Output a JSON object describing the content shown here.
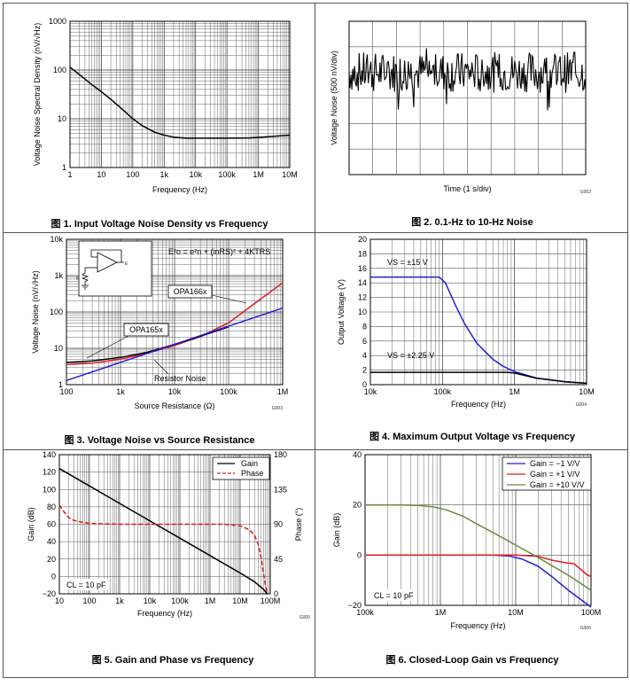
{
  "colors": {
    "blue": "#1f1fd8",
    "red": "#e01b1b",
    "green": "#6a8a3a",
    "black": "#000000",
    "grid": "#555555"
  },
  "chart_data": [
    {
      "id": "fig1",
      "type": "line",
      "title": "图 1. Input Voltage Noise Density vs Frequency",
      "xlabel": "Frequency (Hz)",
      "ylabel": "Voltage Noise Spectral Density (nV/√Hz)",
      "xscale": "log",
      "yscale": "log",
      "xlim": [
        1,
        10000000
      ],
      "ylim": [
        1,
        1000
      ],
      "xticks": [
        1,
        10,
        100,
        1000,
        10000,
        100000,
        1000000,
        10000000
      ],
      "xtick_labels": [
        "1",
        "10",
        "100",
        "1k",
        "10k",
        "100k",
        "1M",
        "10M"
      ],
      "yticks": [
        1,
        10,
        100,
        1000
      ],
      "ytick_labels": [
        "1",
        "10",
        "100",
        "1000"
      ],
      "code": "",
      "series": [
        {
          "name": "Noise",
          "color": "#000000",
          "x": [
            1,
            2,
            5,
            10,
            20,
            50,
            100,
            200,
            500,
            1000,
            2000,
            5000,
            10000,
            50000,
            100000,
            500000,
            1000000,
            5000000,
            10000000
          ],
          "y": [
            115,
            80,
            50,
            36,
            25,
            15,
            10,
            7.2,
            5.3,
            4.6,
            4.2,
            4.0,
            4.0,
            4.0,
            4.0,
            4.05,
            4.15,
            4.45,
            4.6
          ]
        }
      ]
    },
    {
      "id": "fig2",
      "type": "line",
      "title": "图 2. 0.1-Hz to 10-Hz Noise",
      "xlabel": "Time (1 s/div)",
      "ylabel": "Voltage Noise (500 nV/div)",
      "xlim": [
        0,
        10
      ],
      "ylim": [
        -3,
        3
      ],
      "code": "G002",
      "series": [
        {
          "name": "noise",
          "color": "#000000",
          "x": [],
          "y": []
        }
      ]
    },
    {
      "id": "fig3",
      "type": "line",
      "title": "图 3. Voltage Noise vs Source Resistance",
      "xlabel": "Source Resistance (Ω)",
      "ylabel": "Voltage Noise (nV/√Hz)",
      "xscale": "log",
      "yscale": "log",
      "xlim": [
        100,
        1000000
      ],
      "ylim": [
        1,
        10000
      ],
      "xticks": [
        100,
        1000,
        10000,
        100000,
        1000000
      ],
      "xtick_labels": [
        "100",
        "1k",
        "10k",
        "100k",
        "1M"
      ],
      "yticks": [
        1,
        10,
        100,
        1000,
        10000
      ],
      "ytick_labels": [
        "1",
        "10",
        "100",
        "1k",
        "10k"
      ],
      "code": "G003",
      "equation": "E²o = e²n + (inRS)² + 4KTRS",
      "annotations": [
        "OPA166x",
        "OPA165x",
        "Resistor Noise"
      ],
      "series": [
        {
          "name": "OPA166x",
          "color": "#e01b1b",
          "x": [
            100,
            300,
            1000,
            3000,
            10000,
            30000,
            100000,
            300000,
            1000000
          ],
          "y": [
            3.6,
            3.9,
            5.0,
            7.2,
            12.0,
            21,
            50,
            170,
            630
          ]
        },
        {
          "name": "OPA165x",
          "color": "#000000",
          "x": [
            100,
            300,
            1000,
            3000,
            10000,
            30000,
            100000
          ],
          "y": [
            4.1,
            4.5,
            5.6,
            7.7,
            12.8,
            21.5,
            39
          ]
        },
        {
          "name": "Resistor Noise",
          "color": "#1f1fd8",
          "x": [
            100,
            1000000
          ],
          "y": [
            1.3,
            128
          ]
        }
      ]
    },
    {
      "id": "fig4",
      "type": "line",
      "title": "图 4. Maximum Output Voltage vs Frequency",
      "xlabel": "Frequency (Hz)",
      "ylabel": "Output Voltage (V)",
      "xscale": "log",
      "xlim": [
        10000,
        10000000
      ],
      "ylim": [
        0,
        20
      ],
      "xticks": [
        10000,
        100000,
        1000000,
        10000000
      ],
      "xtick_labels": [
        "10k",
        "100k",
        "1M",
        "10M"
      ],
      "yticks": [
        0,
        2,
        4,
        6,
        8,
        10,
        12,
        14,
        16,
        18,
        20
      ],
      "ytick_labels": [
        "0",
        "2",
        "4",
        "6",
        "8",
        "10",
        "12",
        "14",
        "16",
        "18",
        "20"
      ],
      "code": "G004",
      "annotations": [
        "VS = ±15 V",
        "VS = ±2.25 V"
      ],
      "series": [
        {
          "name": "VS = ±15 V",
          "color": "#1f1fd8",
          "x": [
            10000,
            50000,
            90000,
            110000,
            150000,
            200000,
            300000,
            500000,
            700000,
            1000000,
            2000000,
            5000000,
            10000000
          ],
          "y": [
            14.8,
            14.8,
            14.8,
            14.0,
            11.0,
            8.5,
            5.7,
            3.5,
            2.5,
            1.8,
            0.9,
            0.4,
            0.2
          ]
        },
        {
          "name": "VS = ±2.25 V",
          "color": "#000000",
          "x": [
            10000,
            500000,
            800000,
            1000000,
            2000000,
            5000000,
            10000000
          ],
          "y": [
            1.7,
            1.7,
            1.7,
            1.6,
            0.9,
            0.4,
            0.2
          ]
        }
      ]
    },
    {
      "id": "fig5",
      "type": "line",
      "title": "图 5. Gain and Phase vs Frequency",
      "xlabel": "Frequency (Hz)",
      "ylabel": "Gain (dB)",
      "y2label": "Phase (°)",
      "xscale": "log",
      "xlim": [
        10,
        100000000
      ],
      "ylim": [
        -20,
        140
      ],
      "y2lim": [
        0,
        180
      ],
      "xticks": [
        10,
        100,
        1000,
        10000,
        100000,
        1000000,
        10000000,
        100000000
      ],
      "xtick_labels": [
        "10",
        "100",
        "1k",
        "10k",
        "100k",
        "1M",
        "10M",
        "100M"
      ],
      "yticks": [
        -20,
        0,
        20,
        40,
        60,
        80,
        100,
        120,
        140
      ],
      "ytick_labels": [
        "−20",
        "0",
        "20",
        "40",
        "60",
        "80",
        "100",
        "120",
        "140"
      ],
      "y2ticks": [
        0,
        45,
        90,
        135,
        180
      ],
      "y2tick_labels": [
        "0",
        "45",
        "90",
        "135",
        "180"
      ],
      "code": "G005",
      "note": "CL = 10 pF",
      "legend": [
        "Gain",
        "Phase"
      ],
      "series": [
        {
          "name": "Gain",
          "color": "#000000",
          "axis": "y",
          "x": [
            10,
            100,
            1000,
            10000,
            100000,
            1000000,
            10000000,
            30000000,
            60000000,
            80000000
          ],
          "y": [
            124,
            104,
            84,
            64,
            44,
            24,
            4,
            -6,
            -15,
            -20
          ]
        },
        {
          "name": "Phase",
          "color": "#e01b1b",
          "axis": "y2",
          "dashed": true,
          "x": [
            10,
            13,
            20,
            30,
            50,
            100,
            1000,
            100000,
            1000000,
            3000000,
            10000000,
            20000000,
            30000000,
            40000000,
            50000000,
            60000000,
            70000000,
            80000000
          ],
          "y": [
            115,
            108,
            99,
            95,
            93,
            91,
            90,
            90,
            90,
            90,
            88,
            83,
            76,
            64,
            46,
            25,
            10,
            0
          ]
        }
      ]
    },
    {
      "id": "fig6",
      "type": "line",
      "title": "图 6. Closed-Loop Gain vs Frequency",
      "xlabel": "Frequency (Hz)",
      "ylabel": "Gain (dB)",
      "xscale": "log",
      "xlim": [
        100000,
        100000000
      ],
      "ylim": [
        -20,
        40
      ],
      "xticks": [
        100000,
        1000000,
        10000000,
        100000000
      ],
      "xtick_labels": [
        "100k",
        "1M",
        "10M",
        "100M"
      ],
      "yticks": [
        -20,
        0,
        20,
        40
      ],
      "ytick_labels": [
        "−20",
        "0",
        "20",
        "40"
      ],
      "code": "G006",
      "note": "CL = 10 pF",
      "legend": [
        "Gain = −1 V/V",
        "Gain = +1 V/V",
        "Gain = +10 V/V"
      ],
      "series": [
        {
          "name": "Gain = −1 V/V",
          "color": "#1f1fd8",
          "x": [
            100000,
            1000000,
            5000000,
            8000000,
            12000000,
            20000000,
            30000000,
            50000000,
            100000000
          ],
          "y": [
            0,
            0,
            0,
            -0.3,
            -1.5,
            -4.5,
            -8.5,
            -14,
            -22
          ]
        },
        {
          "name": "Gain = +1 V/V",
          "color": "#e01b1b",
          "x": [
            100000,
            1000000,
            5000000,
            10000000,
            20000000,
            30000000,
            45000000,
            60000000,
            75000000,
            90000000,
            100000000
          ],
          "y": [
            0,
            0,
            0,
            0,
            -0.5,
            -2,
            -3,
            -3.5,
            -6,
            -8,
            -8.5
          ]
        },
        {
          "name": "Gain = +10 V/V",
          "color": "#6a8a3a",
          "x": [
            100000,
            300000,
            500000,
            800000,
            1200000,
            2000000,
            3000000,
            5000000,
            10000000,
            20000000,
            50000000,
            100000000
          ],
          "y": [
            20,
            20,
            19.8,
            19.2,
            18,
            15.5,
            12.5,
            9,
            4,
            -1,
            -8,
            -14
          ]
        }
      ]
    }
  ]
}
